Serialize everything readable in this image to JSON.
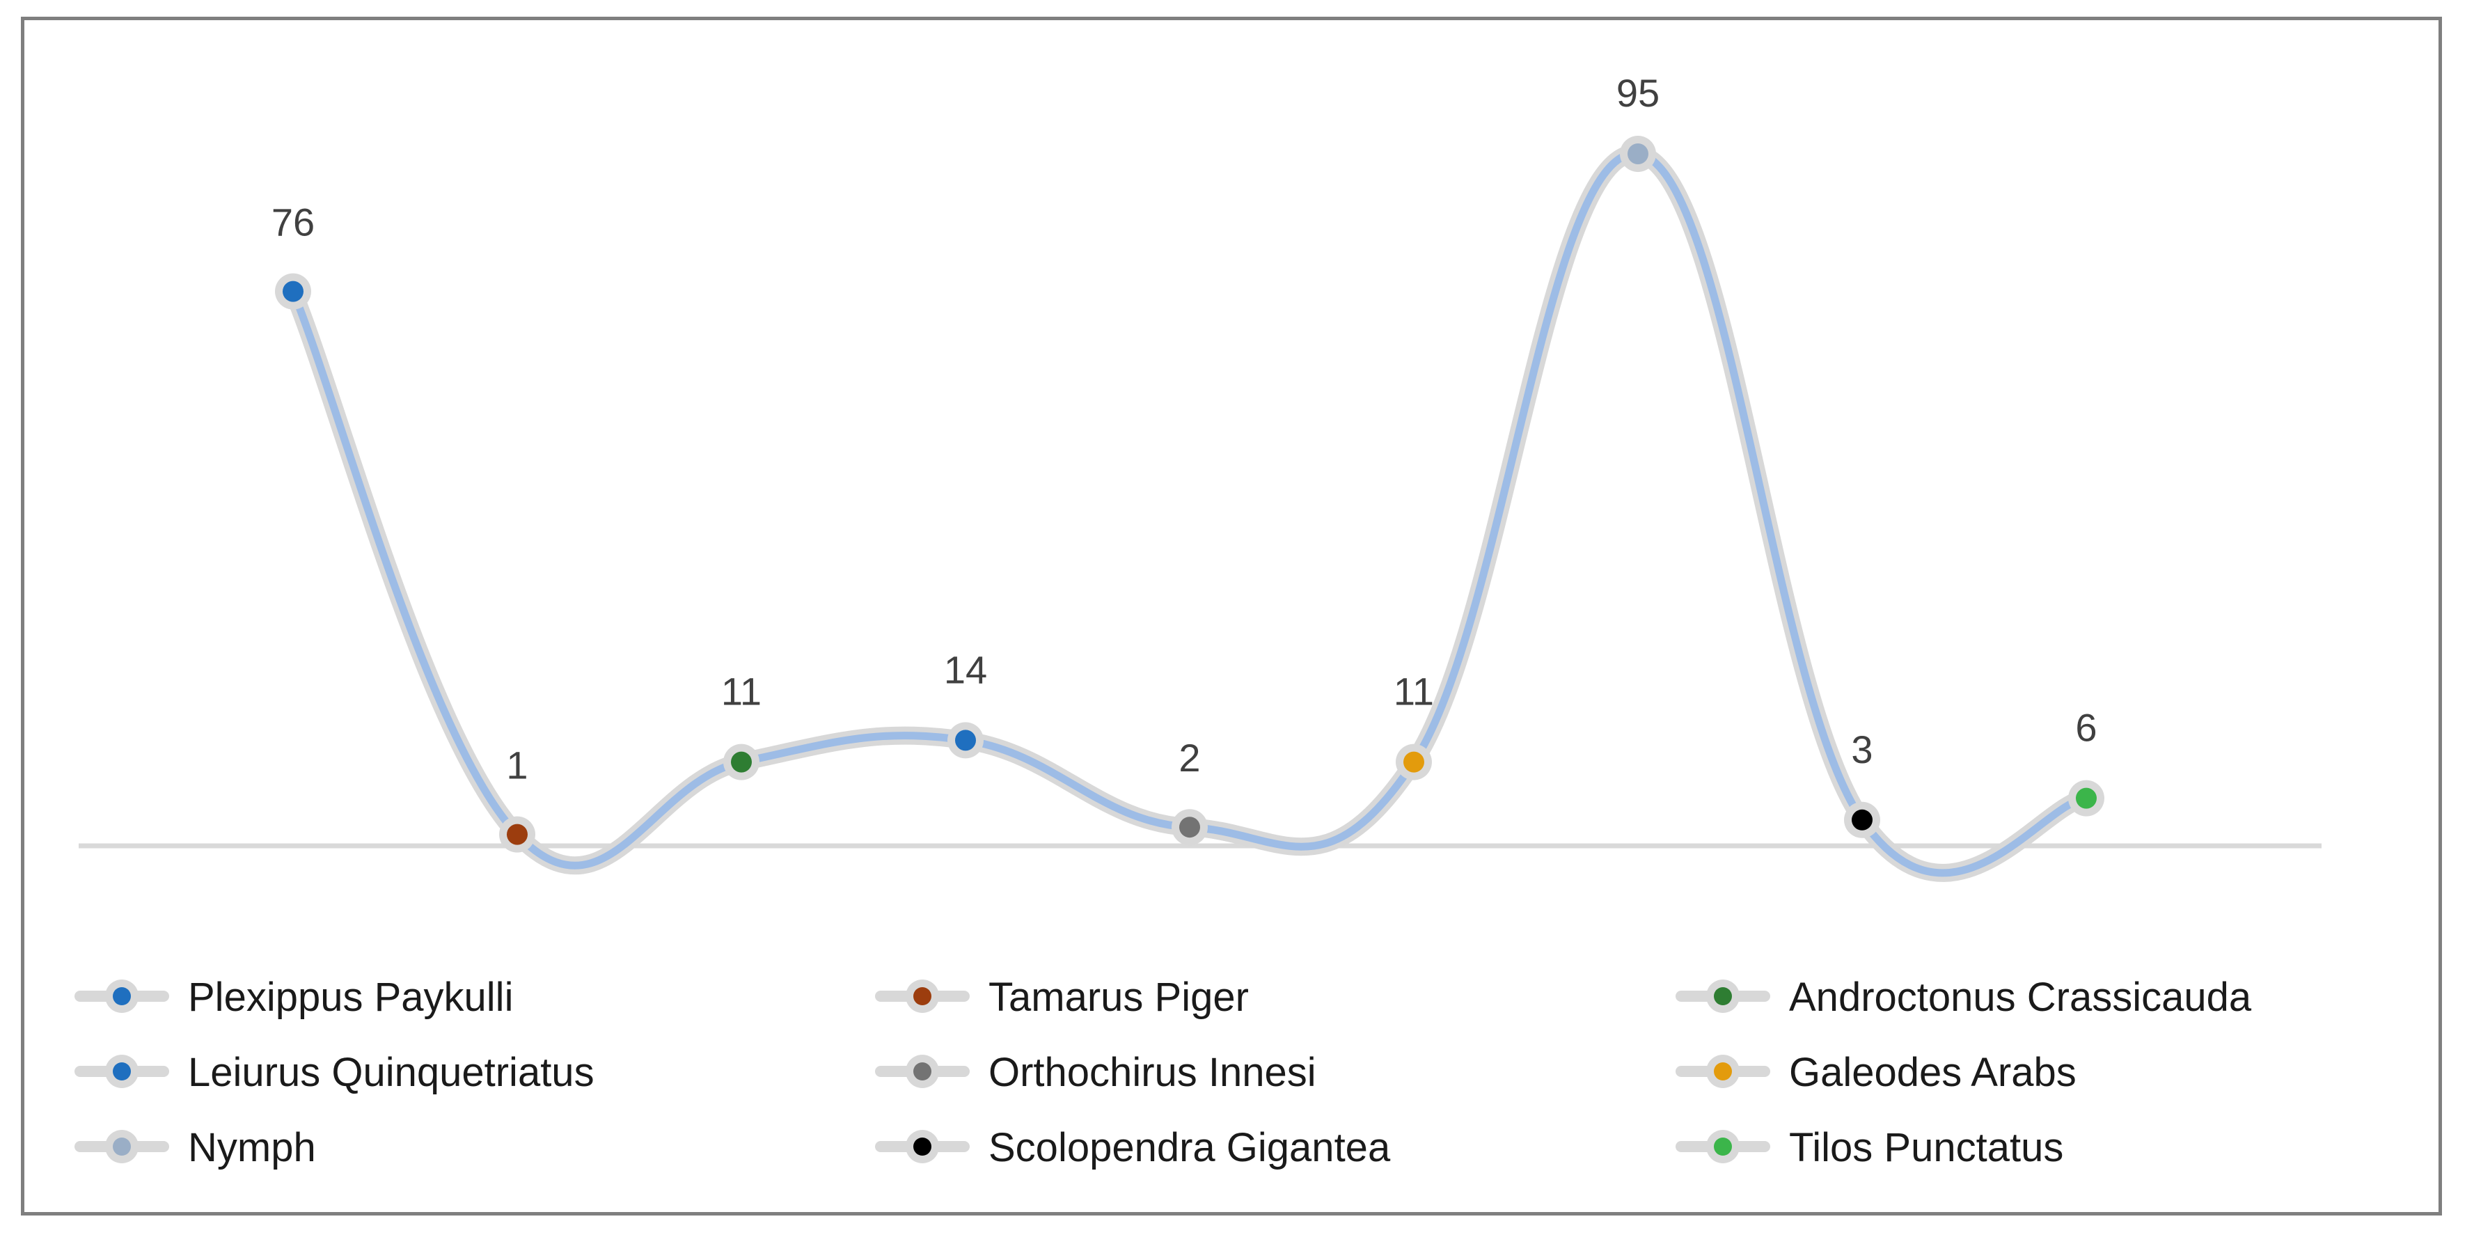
{
  "chart_data": {
    "type": "line",
    "title": "",
    "xlabel": "",
    "ylabel": "",
    "smooth": true,
    "grid": false,
    "legend_position": "bottom",
    "ylim": [
      0,
      100
    ],
    "line_color": "#9dbce6",
    "categories": [
      "Plexippus Paykulli",
      "Tamarus Piger",
      "Androctonus Crassicauda",
      "Leiurus Quinquetriatus",
      "Orthochirus Innesi",
      "Galeodes Arabs",
      "Nymph",
      "Scolopendra Gigantea",
      "Tilos Punctatus"
    ],
    "values": [
      76,
      1,
      11,
      14,
      2,
      11,
      95,
      3,
      6
    ],
    "point_colors": [
      "#1f6fbf",
      "#9c3d0e",
      "#2e7d32",
      "#1f6fbf",
      "#737373",
      "#e39b0c",
      "#9aaec6",
      "#000000",
      "#3bb54a"
    ],
    "legend": [
      {
        "label": "Plexippus Paykulli",
        "color": "#1f6fbf"
      },
      {
        "label": "Tamarus Piger",
        "color": "#9c3d0e"
      },
      {
        "label": "Androctonus Crassicauda",
        "color": "#2e7d32"
      },
      {
        "label": "Leiurus Quinquetriatus",
        "color": "#1f6fbf"
      },
      {
        "label": "Orthochirus Innesi",
        "color": "#737373"
      },
      {
        "label": "Galeodes Arabs",
        "color": "#e39b0c"
      },
      {
        "label": "Nymph",
        "color": "#9aaec6"
      },
      {
        "label": "Scolopendra Gigantea",
        "color": "#000000"
      },
      {
        "label": "Tilos Punctatus",
        "color": "#3bb54a"
      }
    ]
  }
}
